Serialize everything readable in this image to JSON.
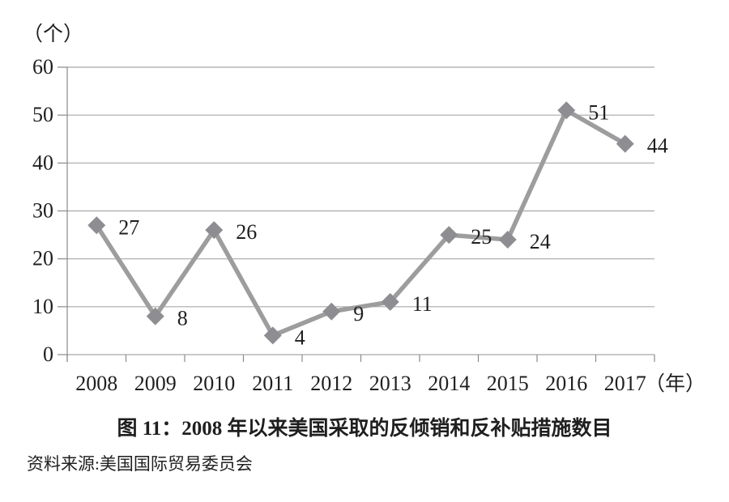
{
  "chart_data": {
    "type": "line",
    "title": "图 11：2008 年以来美国采取的反倾销和反补贴措施数目",
    "categories": [
      "2008",
      "2009",
      "2010",
      "2011",
      "2012",
      "2013",
      "2014",
      "2015",
      "2016",
      "2017"
    ],
    "values": [
      27,
      8,
      26,
      4,
      9,
      11,
      25,
      24,
      51,
      44
    ],
    "y_ticks": [
      0,
      10,
      20,
      30,
      40,
      50,
      60
    ],
    "ylim": [
      0,
      60
    ],
    "y_unit_label": "（个）",
    "x_unit_label": "（年）",
    "grid": true,
    "legend": "none",
    "marker_shape": "diamond",
    "colors": {
      "line": "#9d9d9d",
      "marker": "#8e8e92",
      "grid": "#a8a8a8",
      "axis": "#8a8a8a",
      "text": "#1f1f1f"
    }
  },
  "source_note": "资料来源:美国国际贸易委员会"
}
